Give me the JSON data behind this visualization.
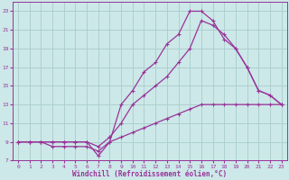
{
  "xlabel": "Windchill (Refroidissement éolien,°C)",
  "bg_color": "#cce8e8",
  "grid_color": "#aacccc",
  "line_color": "#993399",
  "axis_color": "#993399",
  "xlim": [
    -0.5,
    23.5
  ],
  "ylim": [
    7,
    24
  ],
  "xticks": [
    0,
    1,
    2,
    3,
    4,
    5,
    6,
    7,
    8,
    9,
    10,
    11,
    12,
    13,
    14,
    15,
    16,
    17,
    18,
    19,
    20,
    21,
    22,
    23
  ],
  "yticks": [
    7,
    9,
    11,
    13,
    15,
    17,
    19,
    21,
    23
  ],
  "line1_x": [
    0,
    1,
    2,
    3,
    4,
    5,
    6,
    7,
    8,
    9,
    10,
    11,
    12,
    13,
    14,
    15,
    16,
    17,
    18,
    19,
    20,
    21,
    22,
    23
  ],
  "line1_y": [
    9,
    9,
    9,
    8.5,
    8.5,
    8.5,
    8.5,
    8,
    9,
    9.5,
    10,
    10.5,
    11,
    11.5,
    12,
    12.5,
    13,
    13,
    13,
    13,
    13,
    13,
    13,
    13
  ],
  "line2_x": [
    0,
    1,
    2,
    3,
    4,
    5,
    6,
    7,
    8,
    9,
    10,
    11,
    12,
    13,
    14,
    15,
    16,
    17,
    18,
    19,
    20,
    21,
    22,
    23
  ],
  "line2_y": [
    9,
    9,
    9,
    9,
    9,
    9,
    9,
    7.5,
    9,
    13,
    14.5,
    16.5,
    17.5,
    19.5,
    20.5,
    23,
    23,
    22,
    20,
    19,
    17,
    14.5,
    14,
    13
  ],
  "line3_x": [
    0,
    1,
    2,
    3,
    4,
    5,
    6,
    7,
    8,
    9,
    10,
    11,
    12,
    13,
    14,
    15,
    16,
    17,
    18,
    19,
    20,
    21,
    22,
    23
  ],
  "line3_y": [
    9,
    9,
    9,
    9,
    9,
    9,
    9,
    8.5,
    9.5,
    11,
    13,
    14,
    15,
    16,
    17.5,
    19,
    22,
    21.5,
    20.5,
    19,
    17,
    14.5,
    14,
    13
  ]
}
